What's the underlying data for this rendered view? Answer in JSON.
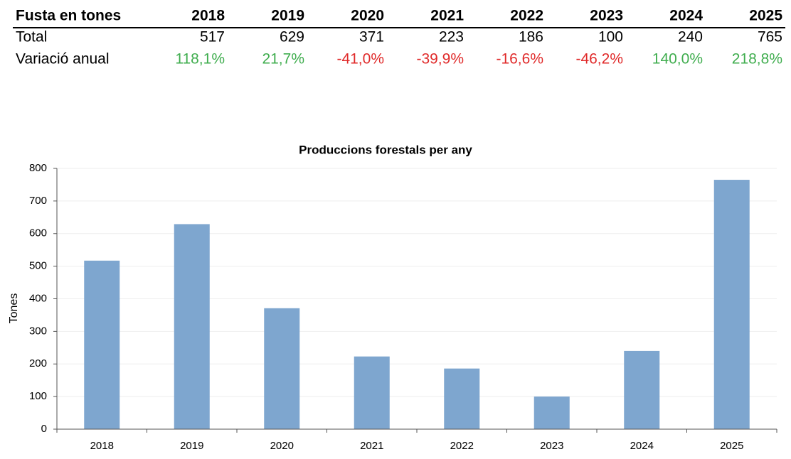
{
  "table": {
    "header": [
      "Fusta en tones",
      "2018",
      "2019",
      "2020",
      "2021",
      "2022",
      "2023",
      "2024",
      "2025"
    ],
    "rows": [
      [
        "Total",
        517,
        629,
        371,
        223,
        186,
        100,
        240,
        765
      ],
      [
        "Variació anual",
        "118,1%",
        "21,7%",
        "-41,0%",
        "-39,9%",
        "-16,6%",
        "-46,2%",
        "140,0%",
        "218,8%"
      ]
    ],
    "positive_color": "#3fad4e",
    "negative_color": "#e02a2a"
  },
  "chart_data": {
    "type": "bar",
    "title": "Produccions forestals per any",
    "y_label": "Tones",
    "categories": [
      "2018",
      "2019",
      "2020",
      "2021",
      "2022",
      "2023",
      "2024",
      "2025"
    ],
    "values": [
      517,
      629,
      371,
      223,
      186,
      100,
      240,
      765
    ],
    "color": "#7ea6cf",
    "ylim": [
      0,
      800
    ],
    "yticks": [
      0,
      100,
      200,
      300,
      400,
      500,
      600,
      700,
      800
    ],
    "grid": true
  }
}
